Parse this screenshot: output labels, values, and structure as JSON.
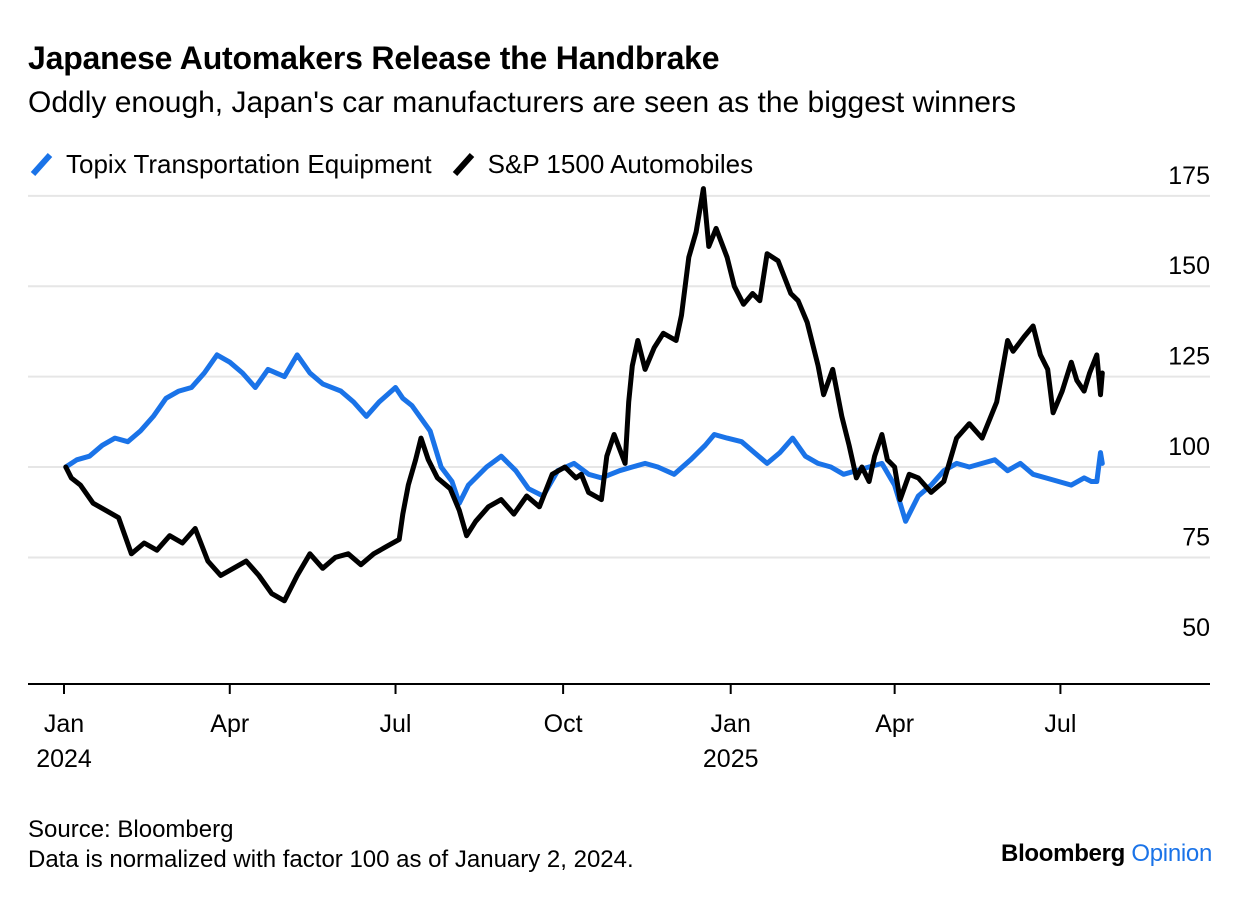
{
  "title": "Japanese Automakers Release the Handbrake",
  "subtitle": "Oddly enough, Japan's car manufacturers are seen as the biggest winners",
  "source": "Source: Bloomberg",
  "note": "Data is normalized with factor 100 as of January 2, 2024.",
  "brand": {
    "name": "Bloomberg",
    "product": "Opinion",
    "product_color": "#1a73e8"
  },
  "chart_data": {
    "type": "line",
    "x_axis": {
      "range": [
        "2024-01-01",
        "2025-10-01"
      ],
      "ticks": [
        {
          "date": "2024-01-01",
          "label": "Jan",
          "year": "2024"
        },
        {
          "date": "2024-04-01",
          "label": "Apr",
          "year": ""
        },
        {
          "date": "2024-07-01",
          "label": "Jul",
          "year": ""
        },
        {
          "date": "2024-10-01",
          "label": "Oct",
          "year": ""
        },
        {
          "date": "2025-01-01",
          "label": "Jan",
          "year": "2025"
        },
        {
          "date": "2025-04-01",
          "label": "Apr",
          "year": ""
        },
        {
          "date": "2025-07-01",
          "label": "Jul",
          "year": ""
        }
      ]
    },
    "y_axis": {
      "range": [
        40,
        178
      ],
      "ticks": [
        50,
        75,
        100,
        125,
        150,
        175
      ],
      "position": "right",
      "grid": true
    },
    "legend_position": "top-left",
    "series": [
      {
        "name": "Topix Transportation Equipment",
        "color": "#1a73e8",
        "points": [
          [
            "2024-01-02",
            100
          ],
          [
            "2024-01-08",
            102
          ],
          [
            "2024-01-15",
            103
          ],
          [
            "2024-01-22",
            106
          ],
          [
            "2024-01-29",
            108
          ],
          [
            "2024-02-05",
            107
          ],
          [
            "2024-02-12",
            110
          ],
          [
            "2024-02-19",
            114
          ],
          [
            "2024-02-26",
            119
          ],
          [
            "2024-03-04",
            121
          ],
          [
            "2024-03-11",
            122
          ],
          [
            "2024-03-18",
            126
          ],
          [
            "2024-03-25",
            131
          ],
          [
            "2024-04-01",
            129
          ],
          [
            "2024-04-08",
            126
          ],
          [
            "2024-04-15",
            122
          ],
          [
            "2024-04-22",
            127
          ],
          [
            "2024-05-01",
            125
          ],
          [
            "2024-05-08",
            131
          ],
          [
            "2024-05-15",
            126
          ],
          [
            "2024-05-22",
            123
          ],
          [
            "2024-06-01",
            121
          ],
          [
            "2024-06-08",
            118
          ],
          [
            "2024-06-15",
            114
          ],
          [
            "2024-06-22",
            118
          ],
          [
            "2024-07-01",
            122
          ],
          [
            "2024-07-05",
            119
          ],
          [
            "2024-07-10",
            117
          ],
          [
            "2024-07-20",
            110
          ],
          [
            "2024-07-26",
            100
          ],
          [
            "2024-08-01",
            96
          ],
          [
            "2024-08-05",
            90
          ],
          [
            "2024-08-10",
            95
          ],
          [
            "2024-08-20",
            100
          ],
          [
            "2024-08-28",
            103
          ],
          [
            "2024-09-05",
            99
          ],
          [
            "2024-09-12",
            94
          ],
          [
            "2024-09-20",
            92
          ],
          [
            "2024-09-28",
            99
          ],
          [
            "2024-10-07",
            101
          ],
          [
            "2024-10-15",
            98
          ],
          [
            "2024-10-22",
            97
          ],
          [
            "2024-11-01",
            99
          ],
          [
            "2024-11-08",
            100
          ],
          [
            "2024-11-15",
            101
          ],
          [
            "2024-11-22",
            100
          ],
          [
            "2024-12-01",
            98
          ],
          [
            "2024-12-10",
            102
          ],
          [
            "2024-12-18",
            106
          ],
          [
            "2024-12-23",
            109
          ],
          [
            "2024-12-30",
            108
          ],
          [
            "2025-01-07",
            107
          ],
          [
            "2025-01-14",
            104
          ],
          [
            "2025-01-21",
            101
          ],
          [
            "2025-01-28",
            104
          ],
          [
            "2025-02-04",
            108
          ],
          [
            "2025-02-11",
            103
          ],
          [
            "2025-02-18",
            101
          ],
          [
            "2025-02-25",
            100
          ],
          [
            "2025-03-04",
            98
          ],
          [
            "2025-03-11",
            99
          ],
          [
            "2025-03-18",
            100
          ],
          [
            "2025-03-25",
            101
          ],
          [
            "2025-04-01",
            95
          ],
          [
            "2025-04-07",
            85
          ],
          [
            "2025-04-14",
            92
          ],
          [
            "2025-04-21",
            95
          ],
          [
            "2025-04-28",
            99
          ],
          [
            "2025-05-05",
            101
          ],
          [
            "2025-05-12",
            100
          ],
          [
            "2025-05-19",
            101
          ],
          [
            "2025-05-26",
            102
          ],
          [
            "2025-06-02",
            99
          ],
          [
            "2025-06-09",
            101
          ],
          [
            "2025-06-16",
            98
          ],
          [
            "2025-06-23",
            97
          ],
          [
            "2025-06-30",
            96
          ],
          [
            "2025-07-07",
            95
          ],
          [
            "2025-07-14",
            97
          ],
          [
            "2025-07-18",
            96
          ],
          [
            "2025-07-21",
            96
          ],
          [
            "2025-07-23",
            104
          ],
          [
            "2025-07-24",
            101
          ]
        ]
      },
      {
        "name": "S&P 1500 Automobiles",
        "color": "#000000",
        "points": [
          [
            "2024-01-02",
            100
          ],
          [
            "2024-01-05",
            97
          ],
          [
            "2024-01-10",
            95
          ],
          [
            "2024-01-17",
            90
          ],
          [
            "2024-01-24",
            88
          ],
          [
            "2024-01-31",
            86
          ],
          [
            "2024-02-07",
            76
          ],
          [
            "2024-02-14",
            79
          ],
          [
            "2024-02-21",
            77
          ],
          [
            "2024-02-28",
            81
          ],
          [
            "2024-03-06",
            79
          ],
          [
            "2024-03-13",
            83
          ],
          [
            "2024-03-20",
            74
          ],
          [
            "2024-03-27",
            70
          ],
          [
            "2024-04-03",
            72
          ],
          [
            "2024-04-10",
            74
          ],
          [
            "2024-04-17",
            70
          ],
          [
            "2024-04-24",
            65
          ],
          [
            "2024-05-01",
            63
          ],
          [
            "2024-05-08",
            70
          ],
          [
            "2024-05-15",
            76
          ],
          [
            "2024-05-22",
            72
          ],
          [
            "2024-05-29",
            75
          ],
          [
            "2024-06-05",
            76
          ],
          [
            "2024-06-12",
            73
          ],
          [
            "2024-06-19",
            76
          ],
          [
            "2024-06-26",
            78
          ],
          [
            "2024-07-03",
            80
          ],
          [
            "2024-07-05",
            87
          ],
          [
            "2024-07-08",
            95
          ],
          [
            "2024-07-12",
            102
          ],
          [
            "2024-07-15",
            108
          ],
          [
            "2024-07-19",
            102
          ],
          [
            "2024-07-24",
            97
          ],
          [
            "2024-07-31",
            94
          ],
          [
            "2024-08-05",
            88
          ],
          [
            "2024-08-09",
            81
          ],
          [
            "2024-08-14",
            85
          ],
          [
            "2024-08-21",
            89
          ],
          [
            "2024-08-28",
            91
          ],
          [
            "2024-09-04",
            87
          ],
          [
            "2024-09-11",
            92
          ],
          [
            "2024-09-18",
            89
          ],
          [
            "2024-09-25",
            98
          ],
          [
            "2024-10-02",
            100
          ],
          [
            "2024-10-08",
            97
          ],
          [
            "2024-10-11",
            98
          ],
          [
            "2024-10-15",
            93
          ],
          [
            "2024-10-22",
            91
          ],
          [
            "2024-10-25",
            103
          ],
          [
            "2024-10-29",
            109
          ],
          [
            "2024-11-04",
            101
          ],
          [
            "2024-11-06",
            118
          ],
          [
            "2024-11-08",
            128
          ],
          [
            "2024-11-11",
            135
          ],
          [
            "2024-11-15",
            127
          ],
          [
            "2024-11-20",
            133
          ],
          [
            "2024-11-25",
            137
          ],
          [
            "2024-12-02",
            135
          ],
          [
            "2024-12-05",
            142
          ],
          [
            "2024-12-09",
            158
          ],
          [
            "2024-12-13",
            165
          ],
          [
            "2024-12-17",
            177
          ],
          [
            "2024-12-20",
            161
          ],
          [
            "2024-12-24",
            166
          ],
          [
            "2024-12-30",
            158
          ],
          [
            "2025-01-03",
            150
          ],
          [
            "2025-01-08",
            145
          ],
          [
            "2025-01-13",
            148
          ],
          [
            "2025-01-17",
            146
          ],
          [
            "2025-01-21",
            159
          ],
          [
            "2025-01-27",
            157
          ],
          [
            "2025-02-03",
            148
          ],
          [
            "2025-02-07",
            146
          ],
          [
            "2025-02-12",
            140
          ],
          [
            "2025-02-18",
            128
          ],
          [
            "2025-02-21",
            120
          ],
          [
            "2025-02-26",
            127
          ],
          [
            "2025-03-03",
            114
          ],
          [
            "2025-03-07",
            106
          ],
          [
            "2025-03-11",
            97
          ],
          [
            "2025-03-14",
            100
          ],
          [
            "2025-03-18",
            96
          ],
          [
            "2025-03-21",
            103
          ],
          [
            "2025-03-25",
            109
          ],
          [
            "2025-03-28",
            102
          ],
          [
            "2025-04-01",
            100
          ],
          [
            "2025-04-04",
            91
          ],
          [
            "2025-04-09",
            98
          ],
          [
            "2025-04-14",
            97
          ],
          [
            "2025-04-21",
            93
          ],
          [
            "2025-04-28",
            96
          ],
          [
            "2025-05-05",
            108
          ],
          [
            "2025-05-12",
            112
          ],
          [
            "2025-05-19",
            108
          ],
          [
            "2025-05-27",
            118
          ],
          [
            "2025-06-02",
            135
          ],
          [
            "2025-06-05",
            132
          ],
          [
            "2025-06-11",
            136
          ],
          [
            "2025-06-16",
            139
          ],
          [
            "2025-06-20",
            131
          ],
          [
            "2025-06-24",
            127
          ],
          [
            "2025-06-27",
            115
          ],
          [
            "2025-07-02",
            121
          ],
          [
            "2025-07-07",
            129
          ],
          [
            "2025-07-10",
            124
          ],
          [
            "2025-07-14",
            121
          ],
          [
            "2025-07-17",
            126
          ],
          [
            "2025-07-21",
            131
          ],
          [
            "2025-07-23",
            120
          ],
          [
            "2025-07-24",
            126
          ]
        ]
      }
    ]
  }
}
